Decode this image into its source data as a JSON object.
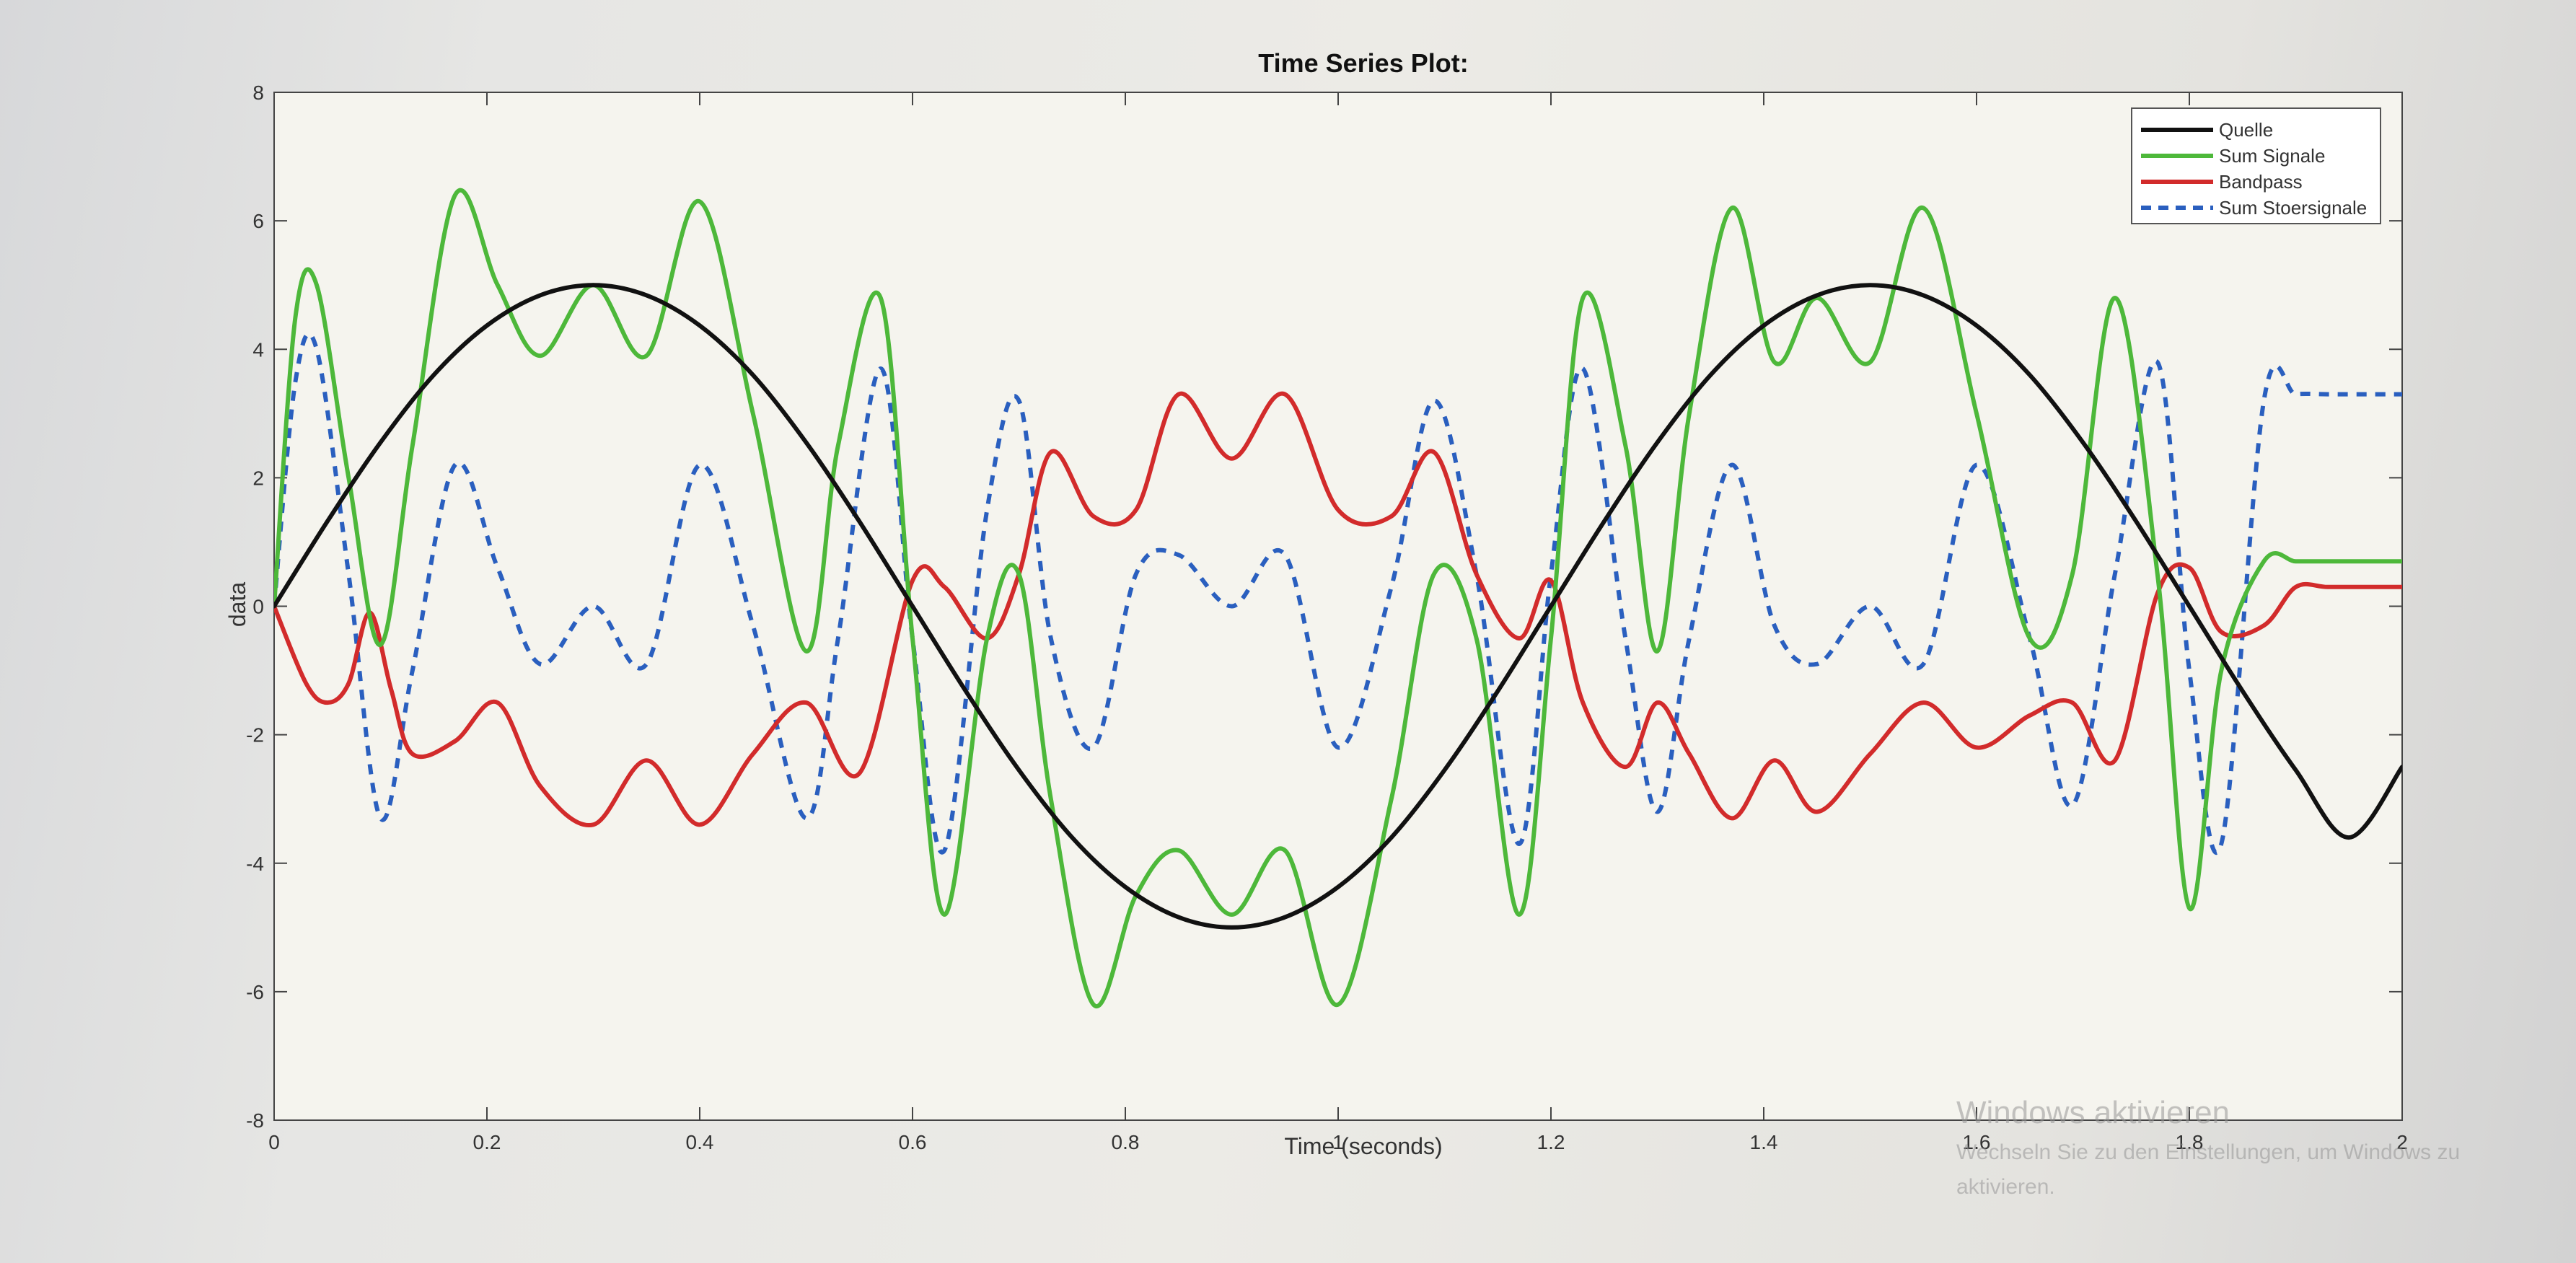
{
  "chart_data": {
    "type": "line",
    "title": "Time Series Plot:",
    "xlabel": "Time (seconds)",
    "ylabel": "data",
    "xlim": [
      0,
      2
    ],
    "ylim": [
      -8,
      8
    ],
    "xticks": [
      "0",
      "0.2",
      "0.4",
      "0.6",
      "0.8",
      "1",
      "1.2",
      "1.4",
      "1.6",
      "1.8",
      "2"
    ],
    "yticks": [
      "-8",
      "-6",
      "-4",
      "-2",
      "0",
      "2",
      "4",
      "6",
      "8"
    ],
    "grid": false,
    "legend_position": "top-right",
    "series": [
      {
        "name": "Quelle",
        "color": "#111111",
        "dash": "solid",
        "x": [
          0,
          0.05,
          0.1,
          0.15,
          0.2,
          0.25,
          0.3,
          0.35,
          0.4,
          0.45,
          0.5,
          0.55,
          0.6,
          0.65,
          0.7,
          0.75,
          0.8,
          0.85,
          0.9,
          0.95,
          1.0,
          1.05,
          1.1,
          1.15,
          1.2,
          1.25,
          1.3,
          1.35,
          1.4,
          1.45,
          1.5,
          1.55,
          1.6,
          1.65,
          1.7,
          1.75,
          1.8,
          1.85,
          1.9,
          1.95,
          2.0
        ],
        "y": [
          0.0,
          1.32,
          2.55,
          3.6,
          4.37,
          4.84,
          5.0,
          4.84,
          4.37,
          3.6,
          2.55,
          1.32,
          0.0,
          -1.32,
          -2.55,
          -3.6,
          -4.37,
          -4.84,
          -5.0,
          -4.84,
          -4.37,
          -3.6,
          -2.55,
          -1.32,
          0.0,
          1.32,
          2.55,
          3.6,
          4.37,
          4.84,
          5.0,
          4.84,
          4.37,
          3.6,
          2.55,
          1.32,
          0.0,
          -1.32,
          -2.55,
          -3.6,
          -2.5
        ]
      },
      {
        "name": "Sum Signale",
        "color": "#4db83a",
        "dash": "solid",
        "x": [
          0,
          0.02,
          0.04,
          0.07,
          0.1,
          0.13,
          0.17,
          0.21,
          0.25,
          0.3,
          0.35,
          0.4,
          0.45,
          0.5,
          0.53,
          0.57,
          0.6,
          0.63,
          0.67,
          0.7,
          0.73,
          0.77,
          0.81,
          0.85,
          0.9,
          0.95,
          1.0,
          1.05,
          1.09,
          1.13,
          1.17,
          1.2,
          1.23,
          1.27,
          1.3,
          1.33,
          1.37,
          1.41,
          1.45,
          1.5,
          1.55,
          1.6,
          1.65,
          1.69,
          1.73,
          1.77,
          1.8,
          1.83,
          1.87,
          1.9,
          1.93,
          1.97,
          2.0
        ],
        "y": [
          0.0,
          4.5,
          5.0,
          2.0,
          -0.6,
          2.5,
          6.4,
          5.0,
          3.9,
          5.0,
          3.9,
          6.3,
          3.0,
          -0.7,
          2.5,
          4.8,
          -0.5,
          -4.8,
          -0.5,
          0.5,
          -3.0,
          -6.2,
          -4.5,
          -3.8,
          -4.8,
          -3.8,
          -6.2,
          -3.0,
          0.5,
          -0.5,
          -4.8,
          -0.5,
          4.8,
          2.5,
          -0.7,
          3.0,
          6.2,
          3.8,
          4.8,
          3.8,
          6.2,
          3.0,
          -0.5,
          0.5,
          4.8,
          0.5,
          -4.7,
          -1.0,
          0.7,
          0.7,
          0.7,
          0.7,
          0.7
        ]
      },
      {
        "name": "Bandpass",
        "color": "#d22b2b",
        "dash": "solid",
        "x": [
          0,
          0.03,
          0.05,
          0.07,
          0.09,
          0.11,
          0.13,
          0.17,
          0.21,
          0.25,
          0.3,
          0.35,
          0.4,
          0.45,
          0.5,
          0.55,
          0.6,
          0.63,
          0.67,
          0.7,
          0.73,
          0.77,
          0.81,
          0.85,
          0.9,
          0.95,
          1.0,
          1.05,
          1.09,
          1.13,
          1.17,
          1.2,
          1.23,
          1.27,
          1.3,
          1.33,
          1.37,
          1.41,
          1.45,
          1.5,
          1.55,
          1.6,
          1.65,
          1.69,
          1.73,
          1.77,
          1.8,
          1.83,
          1.87,
          1.9,
          1.93,
          1.97,
          2.0
        ],
        "y": [
          0.0,
          -1.2,
          -1.5,
          -1.2,
          -0.1,
          -1.3,
          -2.3,
          -2.1,
          -1.5,
          -2.8,
          -3.4,
          -2.4,
          -3.4,
          -2.3,
          -1.5,
          -2.6,
          0.4,
          0.3,
          -0.5,
          0.5,
          2.4,
          1.4,
          1.5,
          3.3,
          2.3,
          3.3,
          1.5,
          1.4,
          2.4,
          0.5,
          -0.5,
          0.4,
          -1.5,
          -2.5,
          -1.5,
          -2.3,
          -3.3,
          -2.4,
          -3.2,
          -2.3,
          -1.5,
          -2.2,
          -1.7,
          -1.5,
          -2.4,
          0.2,
          0.6,
          -0.4,
          -0.3,
          0.3,
          0.3,
          0.3,
          0.3
        ]
      },
      {
        "name": "Sum Stoersignale",
        "color": "#2a5fbf",
        "dash": "dashed",
        "x": [
          0,
          0.02,
          0.04,
          0.07,
          0.1,
          0.13,
          0.17,
          0.21,
          0.25,
          0.3,
          0.35,
          0.4,
          0.45,
          0.5,
          0.53,
          0.57,
          0.6,
          0.63,
          0.67,
          0.7,
          0.73,
          0.77,
          0.81,
          0.85,
          0.9,
          0.95,
          1.0,
          1.05,
          1.09,
          1.13,
          1.17,
          1.2,
          1.23,
          1.27,
          1.3,
          1.33,
          1.37,
          1.41,
          1.45,
          1.5,
          1.55,
          1.6,
          1.65,
          1.69,
          1.73,
          1.77,
          1.8,
          1.83,
          1.87,
          1.9,
          1.93,
          1.97,
          2.0
        ],
        "y": [
          0.0,
          3.5,
          4.0,
          0.5,
          -3.3,
          -1.0,
          2.2,
          0.6,
          -0.9,
          0.0,
          -0.9,
          2.2,
          -0.3,
          -3.3,
          -0.5,
          3.7,
          -0.5,
          -3.8,
          1.5,
          3.2,
          -0.5,
          -2.2,
          0.5,
          0.8,
          0.0,
          0.8,
          -2.2,
          0.3,
          3.2,
          0.5,
          -3.7,
          0.5,
          3.7,
          -0.5,
          -3.2,
          -0.5,
          2.2,
          -0.3,
          -0.9,
          0.0,
          -0.9,
          2.2,
          -0.5,
          -3.1,
          0.5,
          3.8,
          -1.0,
          -3.7,
          3.2,
          3.3,
          3.3,
          3.3,
          3.3
        ]
      }
    ]
  },
  "watermark": {
    "title": "Windows aktivieren",
    "subtitle": "Wechseln Sie zu den Einstellungen, um Windows zu aktivieren."
  }
}
